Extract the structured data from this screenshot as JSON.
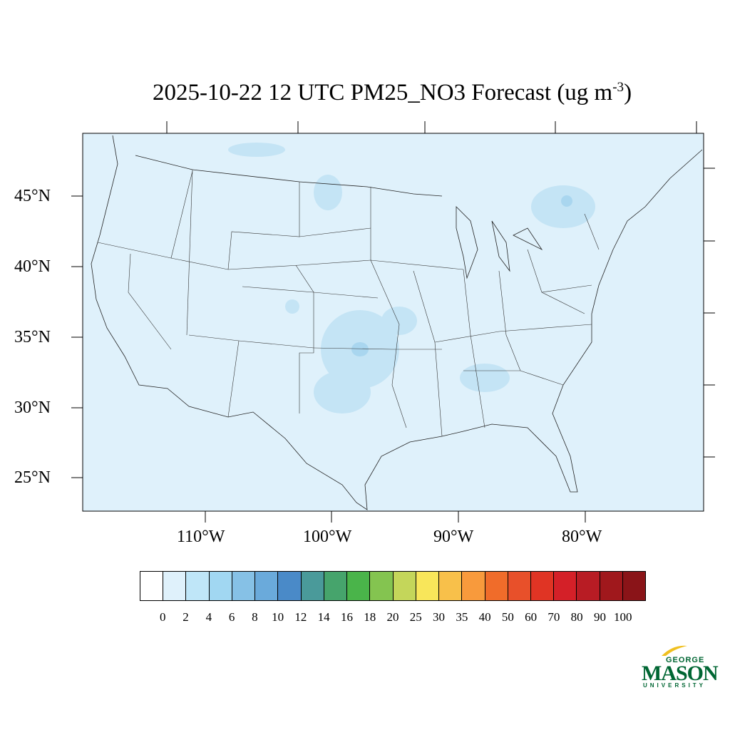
{
  "title": {
    "main": "2025-10-22 12 UTC PM25_NO3 Forecast (ug m",
    "exponent": "-3",
    "close": ")"
  },
  "map": {
    "latitude_labels": [
      "45°N",
      "40°N",
      "35°N",
      "30°N",
      "25°N"
    ],
    "longitude_labels": [
      "110°W",
      "100°W",
      "90°W",
      "80°W"
    ],
    "background_color": "#dff1fb"
  },
  "colorbar": {
    "levels": [
      "0",
      "2",
      "4",
      "6",
      "8",
      "10",
      "12",
      "14",
      "16",
      "18",
      "20",
      "25",
      "30",
      "35",
      "40",
      "50",
      "60",
      "70",
      "80",
      "90",
      "100"
    ],
    "colors": [
      "#ffffff",
      "#dff1fb",
      "#bfe6f8",
      "#a1d7f2",
      "#86c1e6",
      "#6aaadb",
      "#4a8ac8",
      "#4a9a9a",
      "#46a46c",
      "#4ab44a",
      "#84c450",
      "#c4d65a",
      "#f8e65a",
      "#f8c04a",
      "#f89a3c",
      "#f06c2a",
      "#e8502a",
      "#e03424",
      "#d42028",
      "#b81c24",
      "#a0181c",
      "#8a1418"
    ]
  },
  "logo": {
    "line1": "GEORGE",
    "line2": "MASON",
    "line3": "UNIVERSITY",
    "color": "#006633",
    "accent": "#f0c020"
  }
}
